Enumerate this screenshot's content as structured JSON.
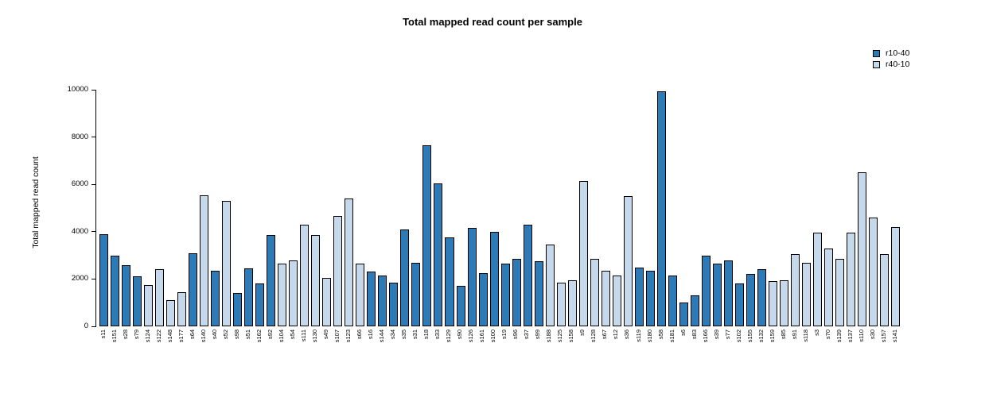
{
  "chart_data": {
    "type": "bar",
    "title": "Total mapped read count per sample",
    "ylabel": "Total mapped read count",
    "ylim": [
      0,
      10000
    ],
    "yticks": [
      0,
      2000,
      4000,
      6000,
      8000,
      10000
    ],
    "grid": false,
    "legend_position": "top-right",
    "series_colors": {
      "r10-40": "#2d7bb6",
      "r40-10": "#c6d9ec"
    },
    "legend": [
      {
        "label": "r10-40",
        "color": "#2d7bb6"
      },
      {
        "label": "r40-10",
        "color": "#c6d9ec"
      }
    ],
    "samples": [
      {
        "name": "s11",
        "value": 3900,
        "series": "r10-40"
      },
      {
        "name": "s151",
        "value": 3000,
        "series": "r10-40"
      },
      {
        "name": "s28",
        "value": 2600,
        "series": "r10-40"
      },
      {
        "name": "s79",
        "value": 2100,
        "series": "r10-40"
      },
      {
        "name": "s124",
        "value": 1750,
        "series": "r40-10"
      },
      {
        "name": "s122",
        "value": 2400,
        "series": "r40-10"
      },
      {
        "name": "s148",
        "value": 1100,
        "series": "r40-10"
      },
      {
        "name": "s177",
        "value": 1450,
        "series": "r40-10"
      },
      {
        "name": "s64",
        "value": 3100,
        "series": "r10-40"
      },
      {
        "name": "s140",
        "value": 5550,
        "series": "r40-10"
      },
      {
        "name": "s40",
        "value": 2350,
        "series": "r10-40"
      },
      {
        "name": "s52",
        "value": 5300,
        "series": "r40-10"
      },
      {
        "name": "s98",
        "value": 1400,
        "series": "r10-40"
      },
      {
        "name": "s51",
        "value": 2450,
        "series": "r10-40"
      },
      {
        "name": "s162",
        "value": 1800,
        "series": "r10-40"
      },
      {
        "name": "s92",
        "value": 3850,
        "series": "r10-40"
      },
      {
        "name": "s104",
        "value": 2650,
        "series": "r40-10"
      },
      {
        "name": "s54",
        "value": 2800,
        "series": "r40-10"
      },
      {
        "name": "s111",
        "value": 4300,
        "series": "r40-10"
      },
      {
        "name": "s130",
        "value": 3850,
        "series": "r40-10"
      },
      {
        "name": "s49",
        "value": 2050,
        "series": "r40-10"
      },
      {
        "name": "s107",
        "value": 4650,
        "series": "r40-10"
      },
      {
        "name": "s123",
        "value": 5400,
        "series": "r40-10"
      },
      {
        "name": "s66",
        "value": 2650,
        "series": "r40-10"
      },
      {
        "name": "s16",
        "value": 2300,
        "series": "r10-40"
      },
      {
        "name": "s144",
        "value": 2150,
        "series": "r10-40"
      },
      {
        "name": "s34",
        "value": 1850,
        "series": "r10-40"
      },
      {
        "name": "s35",
        "value": 4100,
        "series": "r10-40"
      },
      {
        "name": "s31",
        "value": 2700,
        "series": "r10-40"
      },
      {
        "name": "s18",
        "value": 7650,
        "series": "r10-40"
      },
      {
        "name": "s33",
        "value": 6050,
        "series": "r10-40"
      },
      {
        "name": "s129",
        "value": 3750,
        "series": "r10-40"
      },
      {
        "name": "s90",
        "value": 1700,
        "series": "r10-40"
      },
      {
        "name": "s126",
        "value": 4150,
        "series": "r10-40"
      },
      {
        "name": "s161",
        "value": 2250,
        "series": "r10-40"
      },
      {
        "name": "s100",
        "value": 4000,
        "series": "r10-40"
      },
      {
        "name": "s19",
        "value": 2650,
        "series": "r10-40"
      },
      {
        "name": "s96",
        "value": 2850,
        "series": "r10-40"
      },
      {
        "name": "s37",
        "value": 4300,
        "series": "r10-40"
      },
      {
        "name": "s99",
        "value": 2750,
        "series": "r10-40"
      },
      {
        "name": "s188",
        "value": 3450,
        "series": "r40-10"
      },
      {
        "name": "s125",
        "value": 1850,
        "series": "r40-10"
      },
      {
        "name": "s158",
        "value": 1950,
        "series": "r40-10"
      },
      {
        "name": "s9",
        "value": 6150,
        "series": "r40-10"
      },
      {
        "name": "s128",
        "value": 2850,
        "series": "r40-10"
      },
      {
        "name": "s67",
        "value": 2350,
        "series": "r40-10"
      },
      {
        "name": "s12",
        "value": 2150,
        "series": "r40-10"
      },
      {
        "name": "s36",
        "value": 5500,
        "series": "r40-10"
      },
      {
        "name": "s119",
        "value": 2500,
        "series": "r10-40"
      },
      {
        "name": "s180",
        "value": 2350,
        "series": "r10-40"
      },
      {
        "name": "s58",
        "value": 9950,
        "series": "r10-40"
      },
      {
        "name": "s181",
        "value": 2150,
        "series": "r10-40"
      },
      {
        "name": "s6",
        "value": 1000,
        "series": "r10-40"
      },
      {
        "name": "s83",
        "value": 1300,
        "series": "r10-40"
      },
      {
        "name": "s166",
        "value": 3000,
        "series": "r10-40"
      },
      {
        "name": "s39",
        "value": 2650,
        "series": "r10-40"
      },
      {
        "name": "s77",
        "value": 2800,
        "series": "r10-40"
      },
      {
        "name": "s102",
        "value": 1800,
        "series": "r10-40"
      },
      {
        "name": "s155",
        "value": 2200,
        "series": "r10-40"
      },
      {
        "name": "s132",
        "value": 2400,
        "series": "r10-40"
      },
      {
        "name": "s159",
        "value": 1900,
        "series": "r40-10"
      },
      {
        "name": "s85",
        "value": 1950,
        "series": "r40-10"
      },
      {
        "name": "s91",
        "value": 3050,
        "series": "r40-10"
      },
      {
        "name": "s118",
        "value": 2700,
        "series": "r40-10"
      },
      {
        "name": "s3",
        "value": 3950,
        "series": "r40-10"
      },
      {
        "name": "s70",
        "value": 3300,
        "series": "r40-10"
      },
      {
        "name": "s139",
        "value": 2850,
        "series": "r40-10"
      },
      {
        "name": "s137",
        "value": 3950,
        "series": "r40-10"
      },
      {
        "name": "s110",
        "value": 6500,
        "series": "r40-10"
      },
      {
        "name": "s30",
        "value": 4600,
        "series": "r40-10"
      },
      {
        "name": "s157",
        "value": 3050,
        "series": "r40-10"
      },
      {
        "name": "s141",
        "value": 4200,
        "series": "r40-10"
      }
    ]
  }
}
